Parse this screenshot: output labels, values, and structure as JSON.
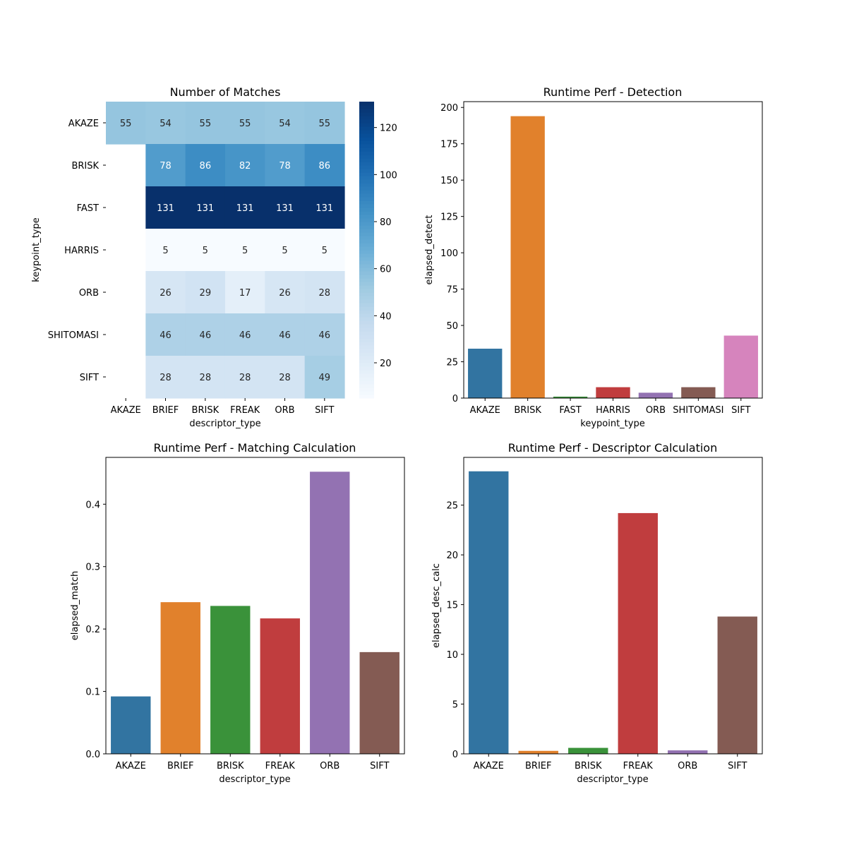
{
  "chart_data": [
    {
      "type": "heatmap",
      "title": "Number of Matches",
      "xlabel": "descriptor_type",
      "ylabel": "keypoint_type",
      "x_categories": [
        "AKAZE",
        "BRIEF",
        "BRISK",
        "FREAK",
        "ORB",
        "SIFT"
      ],
      "y_categories": [
        "AKAZE",
        "BRISK",
        "FAST",
        "HARRIS",
        "ORB",
        "SHITOMASI",
        "SIFT"
      ],
      "values": [
        [
          55,
          54,
          55,
          55,
          54,
          55
        ],
        [
          null,
          78,
          86,
          82,
          78,
          86
        ],
        [
          null,
          131,
          131,
          131,
          131,
          131
        ],
        [
          null,
          5,
          5,
          5,
          5,
          5
        ],
        [
          null,
          26,
          29,
          17,
          26,
          28
        ],
        [
          null,
          46,
          46,
          46,
          46,
          46
        ],
        [
          null,
          28,
          28,
          28,
          28,
          49
        ]
      ],
      "colorbar": {
        "ticks": [
          "20",
          "40",
          "60",
          "80",
          "100",
          "120"
        ],
        "range": [
          5,
          131
        ],
        "colormap": "Blues"
      }
    },
    {
      "type": "bar",
      "title": "Runtime Perf - Detection",
      "xlabel": "keypoint_type",
      "ylabel": "elapsed_detect",
      "categories": [
        "AKAZE",
        "BRISK",
        "FAST",
        "HARRIS",
        "ORB",
        "SHITOMASI",
        "SIFT"
      ],
      "values": [
        34,
        194,
        1,
        7.5,
        3.7,
        7.5,
        43
      ],
      "colors": [
        "#3274a1",
        "#e1812c",
        "#3a923a",
        "#c03d3e",
        "#9372b2",
        "#845b53",
        "#d684bd"
      ],
      "ylim": [
        0,
        204
      ],
      "yticks": [
        "0",
        "25",
        "50",
        "75",
        "100",
        "125",
        "150",
        "175",
        "200"
      ]
    },
    {
      "type": "bar",
      "title": "Runtime Perf - Matching Calculation",
      "xlabel": "descriptor_type",
      "ylabel": "elapsed_match",
      "categories": [
        "AKAZE",
        "BRIEF",
        "BRISK",
        "FREAK",
        "ORB",
        "SIFT"
      ],
      "values": [
        0.092,
        0.243,
        0.237,
        0.217,
        0.452,
        0.163
      ],
      "colors": [
        "#3274a1",
        "#e1812c",
        "#3a923a",
        "#c03d3e",
        "#9372b2",
        "#845b53"
      ],
      "ylim": [
        0,
        0.475
      ],
      "yticks": [
        "0.0",
        "0.1",
        "0.2",
        "0.3",
        "0.4"
      ]
    },
    {
      "type": "bar",
      "title": "Runtime Perf - Descriptor Calculation",
      "xlabel": "descriptor_type",
      "ylabel": "elapsed_desc_calc",
      "categories": [
        "AKAZE",
        "BRIEF",
        "BRISK",
        "FREAK",
        "ORB",
        "SIFT"
      ],
      "values": [
        28.4,
        0.3,
        0.6,
        24.2,
        0.35,
        13.8
      ],
      "colors": [
        "#3274a1",
        "#e1812c",
        "#3a923a",
        "#c03d3e",
        "#9372b2",
        "#845b53"
      ],
      "ylim": [
        0,
        29.8
      ],
      "yticks": [
        "0",
        "5",
        "10",
        "15",
        "20",
        "25"
      ]
    }
  ]
}
